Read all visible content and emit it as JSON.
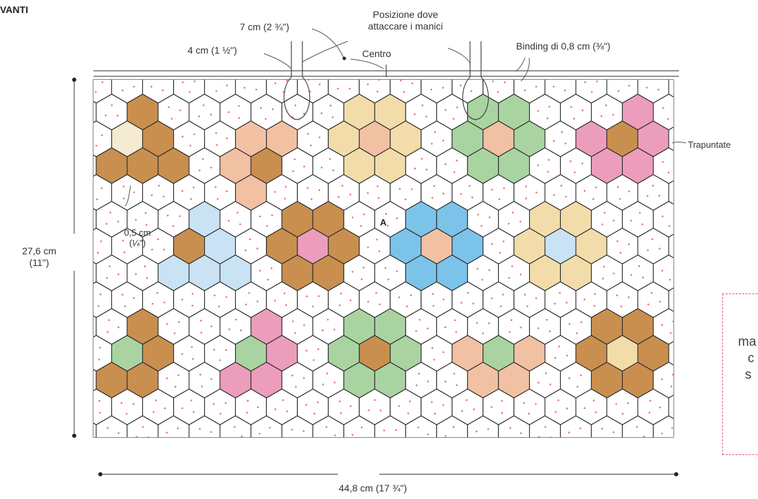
{
  "header": {
    "section_title": "VANTI"
  },
  "labels": {
    "handle_position": [
      "Posizione dove",
      "attaccare i manici"
    ],
    "dist_7cm": "7 cm (2 ¾\")",
    "dist_4cm": "4 cm (1 ½\")",
    "center": "Centro",
    "binding": "Binding di 0,8 cm (⅜\")",
    "quilted": "Trapuntate",
    "seam": [
      "0,5 cm",
      "(¼\")"
    ],
    "marker_a": "A",
    "height": [
      "27,6 cm",
      "(11\")"
    ],
    "width": "44,8 cm (17 ¾\")"
  },
  "note_fragment": [
    "ma",
    "c",
    "s"
  ],
  "colors": {
    "outline": "#2b2b2b",
    "dot_pink": "#e8708a",
    "brown": "#c98f4f",
    "pink": "#ec9dbb",
    "peach": "#f2c1a4",
    "cream": "#f2dcaa",
    "green": "#a9d4a2",
    "light_blue": "#c9e3f4",
    "blue": "#7cc3ea",
    "dashed_box": "#e8536a"
  }
}
